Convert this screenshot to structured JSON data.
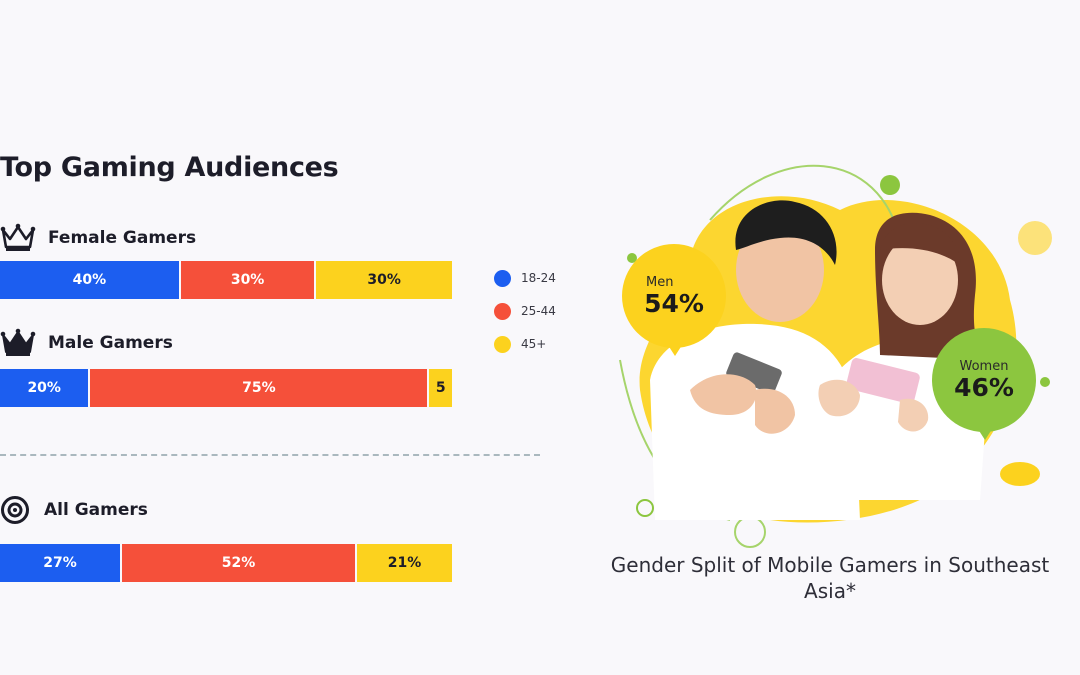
{
  "chart_data": {
    "type": "bar",
    "title": "Top Gaming Audiences",
    "stacked": true,
    "orientation": "horizontal",
    "categories": [
      "Female Gamers",
      "Male Gamers",
      "All Gamers"
    ],
    "series": [
      {
        "name": "18-24",
        "color": "#1c5ef0",
        "values": [
          40,
          20,
          27
        ],
        "labels": [
          "40%",
          "20%",
          "27%"
        ]
      },
      {
        "name": "25-44",
        "color": "#f5503a",
        "values": [
          30,
          75,
          52
        ],
        "labels": [
          "30%",
          "75%",
          "52%"
        ]
      },
      {
        "name": "45+",
        "color": "#fcd21e",
        "values": [
          30,
          5,
          21
        ],
        "labels": [
          "30%",
          "5",
          "21%"
        ]
      }
    ],
    "legend_position": "right"
  },
  "groups": [
    {
      "label": "Female Gamers",
      "icon": "crown-icon"
    },
    {
      "label": "Male Gamers",
      "icon": "crown-icon"
    },
    {
      "label": "All Gamers",
      "icon": "target-icon"
    }
  ],
  "gender_split": {
    "caption": "Gender Split of Mobile Gamers in Southeast Asia*",
    "men": {
      "label": "Men",
      "value": "54%",
      "color": "#fcd21e"
    },
    "women": {
      "label": "Women",
      "value": "46%",
      "color": "#8cc63f"
    }
  }
}
